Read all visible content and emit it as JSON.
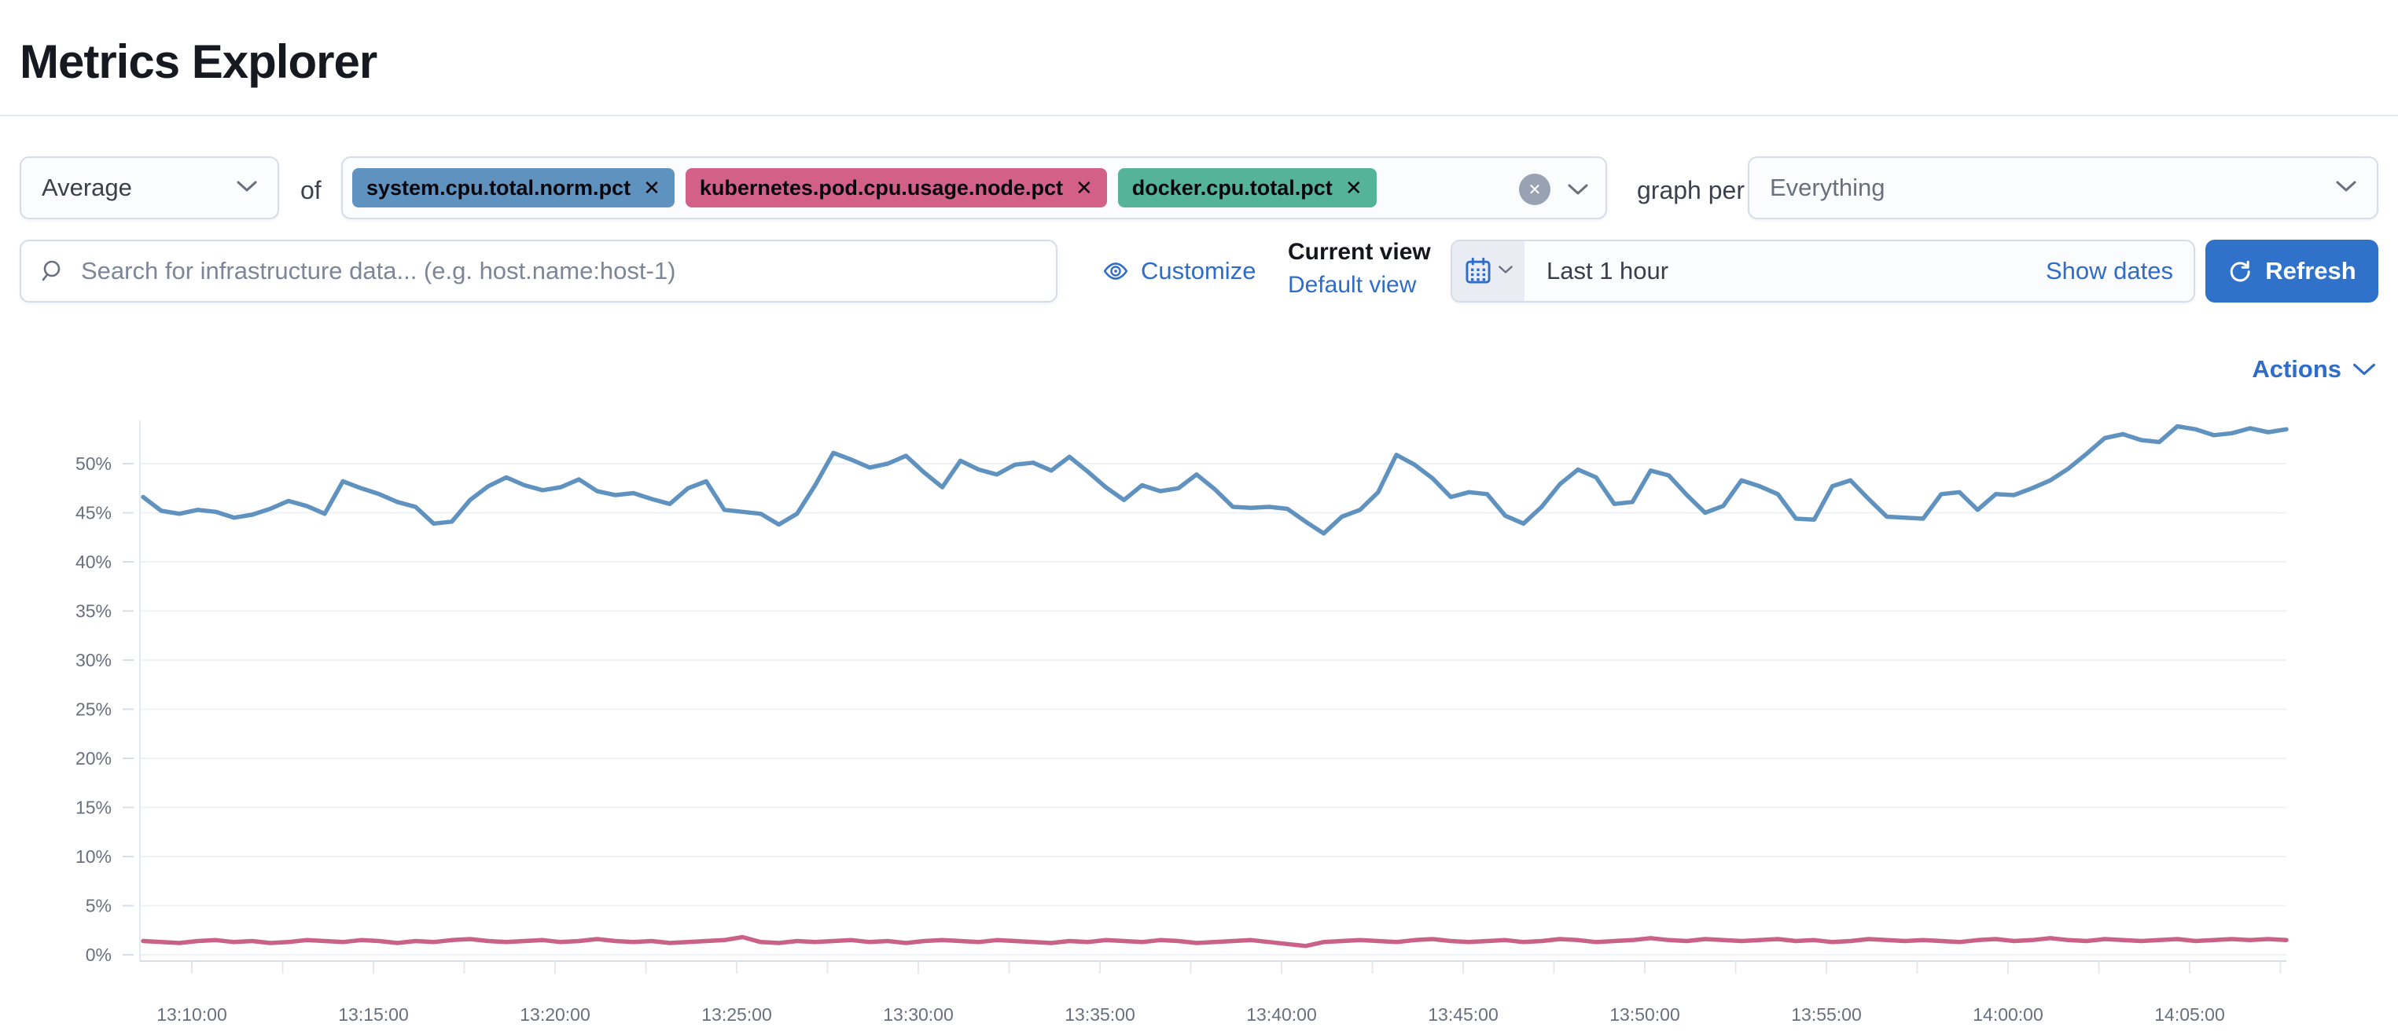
{
  "page": {
    "title": "Metrics Explorer"
  },
  "toolbar": {
    "aggregation_value": "Average",
    "of_label": "of",
    "metrics": [
      {
        "label": "system.cpu.total.norm.pct",
        "color": "#6092C0",
        "remove_icon": "✕"
      },
      {
        "label": "kubernetes.pod.cpu.usage.node.pct",
        "color": "#D36086",
        "remove_icon": "✕"
      },
      {
        "label": "docker.cpu.total.pct",
        "color": "#54B399",
        "remove_icon": "✕"
      }
    ],
    "clear_icon": "✕",
    "graph_per_label": "graph per",
    "group_by_value": "Everything"
  },
  "filter_row": {
    "search_placeholder": "Search for infrastructure data... (e.g. host.name:host-1)",
    "customize_label": "Customize",
    "current_view_label": "Current view",
    "selected_view": "Default view",
    "time_range": "Last 1 hour",
    "show_dates_label": "Show dates",
    "refresh_label": "Refresh"
  },
  "actions_label": "Actions",
  "chart_data": {
    "type": "line",
    "title": "",
    "xlabel": "",
    "ylabel": "",
    "ylim": [
      0,
      54.5
    ],
    "grid": "horizontal",
    "legend": "none",
    "interval_seconds": 30,
    "x_start_time": "13:08:40",
    "y_tick_labels": [
      "0%",
      "5%",
      "10%",
      "15%",
      "20%",
      "25%",
      "30%",
      "35%",
      "40%",
      "45%",
      "50%"
    ],
    "x_tick_labels": [
      "13:10:00",
      "13:15:00",
      "13:20:00",
      "13:25:00",
      "13:30:00",
      "13:35:00",
      "13:40:00",
      "13:45:00",
      "13:50:00",
      "13:55:00",
      "14:00:00",
      "14:05:00"
    ],
    "series": [
      {
        "name": "system.cpu.total.norm.pct",
        "color": "#6092C0",
        "unit": "%",
        "values": [
          46.6,
          45.2,
          44.9,
          45.3,
          45.1,
          44.5,
          44.8,
          45.4,
          46.2,
          45.7,
          44.9,
          48.2,
          47.5,
          46.9,
          46.1,
          45.6,
          43.9,
          44.1,
          46.3,
          47.7,
          48.6,
          47.8,
          47.3,
          47.6,
          48.4,
          47.2,
          46.8,
          47.0,
          46.4,
          45.9,
          47.5,
          48.2,
          45.3,
          45.1,
          44.9,
          43.8,
          44.9,
          47.8,
          51.1,
          50.4,
          49.6,
          50.0,
          50.8,
          49.1,
          47.6,
          50.3,
          49.4,
          48.9,
          49.9,
          50.1,
          49.3,
          50.7,
          49.2,
          47.6,
          46.3,
          47.8,
          47.2,
          47.5,
          48.9,
          47.4,
          45.6,
          45.5,
          45.6,
          45.4,
          44.1,
          42.9,
          44.6,
          45.3,
          47.1,
          50.9,
          49.9,
          48.5,
          46.6,
          47.1,
          46.9,
          44.7,
          43.9,
          45.6,
          47.9,
          49.4,
          48.6,
          45.9,
          46.1,
          49.3,
          48.8,
          46.8,
          45.0,
          45.7,
          48.3,
          47.7,
          46.9,
          44.4,
          44.3,
          47.7,
          48.3,
          46.4,
          44.6,
          44.5,
          44.4,
          46.9,
          47.1,
          45.3,
          46.9,
          46.8,
          47.5,
          48.3,
          49.5,
          51.0,
          52.6,
          53.0,
          52.4,
          52.2,
          53.8,
          53.5,
          52.9,
          53.1,
          53.6,
          53.2,
          53.5
        ]
      },
      {
        "name": "kubernetes.pod.cpu.usage.node.pct",
        "color": "#C96286",
        "unit": "%",
        "values": [
          1.4,
          1.3,
          1.2,
          1.4,
          1.5,
          1.3,
          1.4,
          1.2,
          1.3,
          1.5,
          1.4,
          1.3,
          1.5,
          1.4,
          1.2,
          1.4,
          1.3,
          1.5,
          1.6,
          1.4,
          1.3,
          1.4,
          1.5,
          1.3,
          1.4,
          1.6,
          1.4,
          1.3,
          1.4,
          1.2,
          1.3,
          1.4,
          1.5,
          1.8,
          1.3,
          1.2,
          1.4,
          1.3,
          1.4,
          1.5,
          1.3,
          1.4,
          1.2,
          1.4,
          1.5,
          1.4,
          1.3,
          1.5,
          1.4,
          1.3,
          1.2,
          1.4,
          1.3,
          1.5,
          1.4,
          1.3,
          1.5,
          1.4,
          1.2,
          1.3,
          1.4,
          1.5,
          1.3,
          1.1,
          0.9,
          1.3,
          1.4,
          1.5,
          1.4,
          1.3,
          1.5,
          1.6,
          1.4,
          1.3,
          1.4,
          1.5,
          1.3,
          1.4,
          1.6,
          1.5,
          1.3,
          1.4,
          1.5,
          1.7,
          1.5,
          1.4,
          1.6,
          1.5,
          1.4,
          1.5,
          1.6,
          1.4,
          1.5,
          1.3,
          1.4,
          1.6,
          1.5,
          1.4,
          1.5,
          1.4,
          1.3,
          1.5,
          1.6,
          1.4,
          1.5,
          1.7,
          1.5,
          1.4,
          1.6,
          1.5,
          1.4,
          1.5,
          1.6,
          1.4,
          1.5,
          1.6,
          1.5,
          1.6,
          1.5
        ]
      }
    ]
  }
}
